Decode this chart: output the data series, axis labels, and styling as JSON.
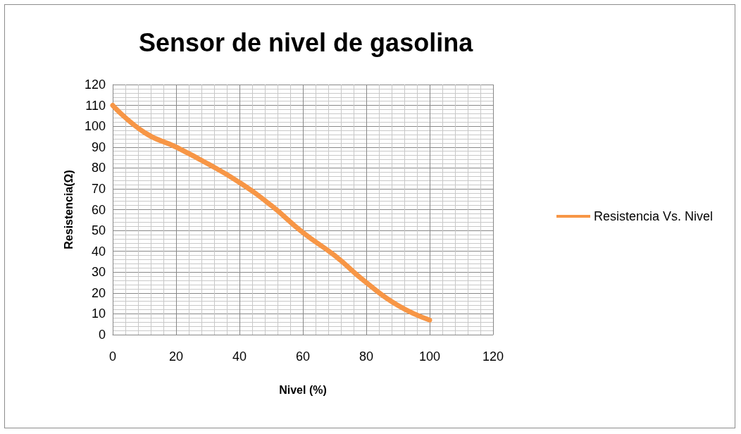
{
  "chart_data": {
    "type": "line",
    "title": "Sensor de nivel de gasolina",
    "xlabel": "Nivel (%)",
    "ylabel": "Resistencia(Ω)",
    "x": [
      0,
      10,
      20,
      30,
      40,
      50,
      60,
      70,
      80,
      90,
      100
    ],
    "series": [
      {
        "name": "Resistencia Vs. Nivel",
        "color": "#f79646",
        "values": [
          110,
          97,
          90,
          82,
          73,
          62,
          49,
          38,
          25,
          14,
          7
        ]
      }
    ],
    "xlim": [
      0,
      120
    ],
    "xticks": [
      0,
      20,
      40,
      60,
      80,
      100,
      120
    ],
    "ylim": [
      0,
      120
    ],
    "yticks": [
      0,
      10,
      20,
      30,
      40,
      50,
      60,
      70,
      80,
      90,
      100,
      110,
      120
    ],
    "grid": true,
    "legend": "right",
    "marker": "none",
    "line_style": "solid"
  }
}
